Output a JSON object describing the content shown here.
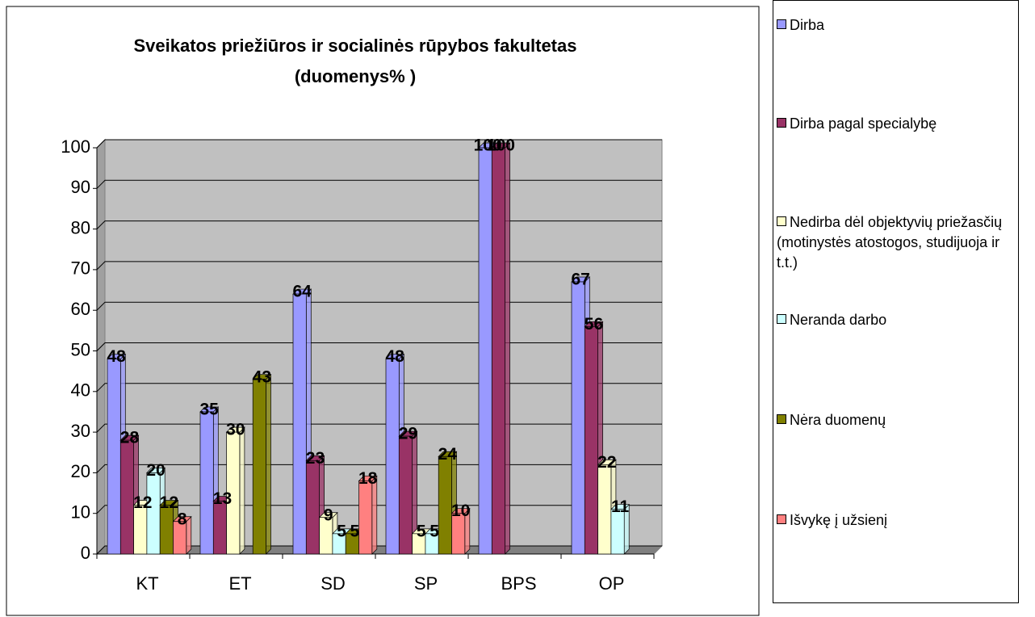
{
  "chart_data": {
    "type": "bar",
    "title": "Sveikatos priežiūros ir socialinės rūpybos fakultetas (duomenys% )",
    "categories": [
      "KT",
      "ET",
      "SD",
      "SP",
      "BPS",
      "OP"
    ],
    "series": [
      {
        "name": "Dirba",
        "color": "#9999ff",
        "values": [
          48,
          35,
          64,
          48,
          100,
          67
        ]
      },
      {
        "name": "Dirba pagal specialybę",
        "color": "#993366",
        "values": [
          28,
          13,
          23,
          29,
          100,
          56
        ]
      },
      {
        "name": "Nedirba dėl objektyvių priežasčių (motinystės atostogos, studijuoja ir t.t.)",
        "color": "#ffffcc",
        "values": [
          12,
          30,
          9,
          5,
          null,
          22
        ]
      },
      {
        "name": "Neranda darbo",
        "color": "#ccffff",
        "values": [
          20,
          null,
          5,
          5,
          null,
          11
        ]
      },
      {
        "name": "Nėra duomenų",
        "color": "#808000",
        "values": [
          12,
          43,
          5,
          24,
          null,
          null
        ]
      },
      {
        "name": "Išvykę į užsienį",
        "color": "#ff8080",
        "values": [
          8,
          null,
          18,
          10,
          null,
          null
        ]
      }
    ],
    "ylim": [
      0,
      100
    ],
    "yticks": [
      0,
      10,
      20,
      30,
      40,
      50,
      60,
      70,
      80,
      90,
      100
    ],
    "grid": true,
    "legend": "right"
  }
}
